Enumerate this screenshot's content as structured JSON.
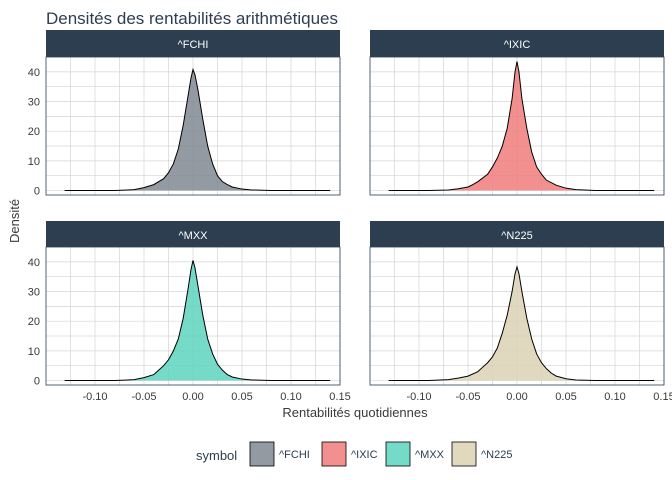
{
  "chart_data": {
    "type": "area",
    "title": "Densités des rentabilités arithmétiques",
    "xlabel": "Rentabilités quotidiennes",
    "ylabel": "Densité",
    "xlim": [
      -0.15,
      0.15
    ],
    "ylim": [
      -1.5,
      45
    ],
    "x_ticks": [
      -0.1,
      -0.05,
      0.0,
      0.05,
      0.1,
      0.15
    ],
    "x_tick_labels": [
      "-0.10",
      "-0.05",
      "0.00",
      "0.05",
      "0.10",
      "0.15"
    ],
    "y_ticks": [
      0,
      10,
      20,
      30,
      40
    ],
    "y_tick_labels": [
      "0",
      "10",
      "20",
      "30",
      "40"
    ],
    "grid": true,
    "legend": {
      "title": "symbol",
      "position": "bottom",
      "entries": [
        "^FCHI",
        "^IXIC",
        "^MXX",
        "^N225"
      ]
    },
    "panels": [
      {
        "name": "^FCHI",
        "color": "#808891",
        "x_range": [
          -0.131,
          0.14
        ],
        "points": [
          [
            -0.08,
            0.0
          ],
          [
            -0.06,
            0.3
          ],
          [
            -0.05,
            1.0
          ],
          [
            -0.04,
            2.0
          ],
          [
            -0.03,
            4.0
          ],
          [
            -0.025,
            6.0
          ],
          [
            -0.02,
            9.0
          ],
          [
            -0.015,
            14.0
          ],
          [
            -0.01,
            22.0
          ],
          [
            -0.005,
            32.0
          ],
          [
            -0.002,
            38.0
          ],
          [
            0.0,
            40.8
          ],
          [
            0.002,
            39.0
          ],
          [
            0.005,
            34.0
          ],
          [
            0.01,
            24.0
          ],
          [
            0.015,
            15.0
          ],
          [
            0.02,
            9.0
          ],
          [
            0.025,
            5.0
          ],
          [
            0.03,
            3.0
          ],
          [
            0.035,
            2.0
          ],
          [
            0.04,
            1.2
          ],
          [
            0.05,
            0.5
          ],
          [
            0.06,
            0.2
          ],
          [
            0.08,
            0.0
          ]
        ]
      },
      {
        "name": "^IXIC",
        "color": "#f07b7b",
        "x_range": [
          -0.131,
          0.14
        ],
        "points": [
          [
            -0.09,
            0.0
          ],
          [
            -0.07,
            0.2
          ],
          [
            -0.06,
            0.6
          ],
          [
            -0.05,
            1.2
          ],
          [
            -0.045,
            2.0
          ],
          [
            -0.04,
            3.0
          ],
          [
            -0.03,
            5.5
          ],
          [
            -0.025,
            8.0
          ],
          [
            -0.02,
            11.0
          ],
          [
            -0.015,
            15.0
          ],
          [
            -0.01,
            21.0
          ],
          [
            -0.005,
            31.0
          ],
          [
            -0.002,
            40.0
          ],
          [
            0.0,
            43.5
          ],
          [
            0.002,
            40.0
          ],
          [
            0.005,
            31.0
          ],
          [
            0.01,
            21.0
          ],
          [
            0.015,
            13.0
          ],
          [
            0.02,
            8.0
          ],
          [
            0.025,
            5.5
          ],
          [
            0.03,
            3.5
          ],
          [
            0.04,
            1.8
          ],
          [
            0.05,
            0.8
          ],
          [
            0.06,
            0.3
          ],
          [
            0.08,
            0.0
          ]
        ]
      },
      {
        "name": "^MXX",
        "color": "#5dd4bd",
        "x_range": [
          -0.131,
          0.14
        ],
        "points": [
          [
            -0.08,
            0.0
          ],
          [
            -0.06,
            0.3
          ],
          [
            -0.05,
            1.0
          ],
          [
            -0.04,
            2.0
          ],
          [
            -0.035,
            3.5
          ],
          [
            -0.03,
            5.0
          ],
          [
            -0.025,
            7.0
          ],
          [
            -0.02,
            10.0
          ],
          [
            -0.015,
            14.0
          ],
          [
            -0.01,
            21.0
          ],
          [
            -0.005,
            31.0
          ],
          [
            -0.002,
            37.5
          ],
          [
            0.0,
            40.5
          ],
          [
            0.002,
            38.0
          ],
          [
            0.005,
            32.0
          ],
          [
            0.01,
            22.0
          ],
          [
            0.015,
            14.0
          ],
          [
            0.02,
            9.0
          ],
          [
            0.025,
            5.5
          ],
          [
            0.03,
            3.5
          ],
          [
            0.035,
            2.0
          ],
          [
            0.04,
            1.2
          ],
          [
            0.05,
            0.5
          ],
          [
            0.06,
            0.2
          ],
          [
            0.08,
            0.0
          ]
        ]
      },
      {
        "name": "^N225",
        "color": "#dcd2b4",
        "x_range": [
          -0.131,
          0.14
        ],
        "points": [
          [
            -0.09,
            0.0
          ],
          [
            -0.07,
            0.3
          ],
          [
            -0.06,
            0.8
          ],
          [
            -0.05,
            1.5
          ],
          [
            -0.04,
            3.0
          ],
          [
            -0.035,
            4.5
          ],
          [
            -0.03,
            6.0
          ],
          [
            -0.025,
            8.0
          ],
          [
            -0.02,
            11.0
          ],
          [
            -0.015,
            16.0
          ],
          [
            -0.01,
            22.0
          ],
          [
            -0.005,
            30.0
          ],
          [
            -0.002,
            36.0
          ],
          [
            0.0,
            38.3
          ],
          [
            0.002,
            36.0
          ],
          [
            0.005,
            30.0
          ],
          [
            0.01,
            21.0
          ],
          [
            0.015,
            14.0
          ],
          [
            0.02,
            9.0
          ],
          [
            0.025,
            6.0
          ],
          [
            0.03,
            4.0
          ],
          [
            0.035,
            2.5
          ],
          [
            0.04,
            1.5
          ],
          [
            0.05,
            0.6
          ],
          [
            0.06,
            0.2
          ],
          [
            0.08,
            0.0
          ]
        ]
      }
    ]
  }
}
